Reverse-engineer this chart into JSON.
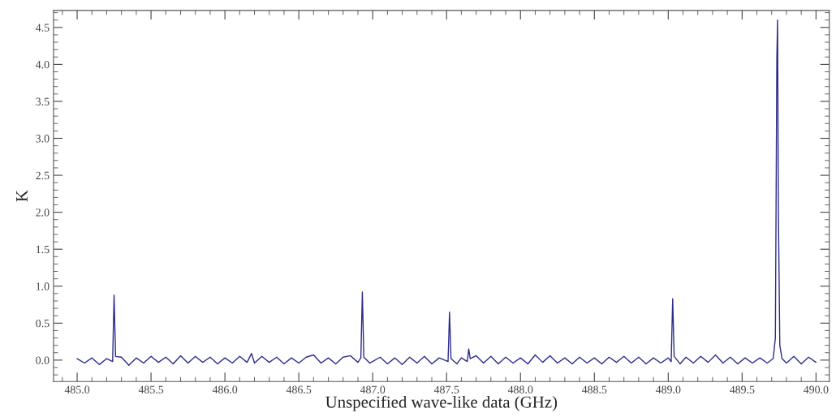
{
  "chart_data": {
    "type": "line",
    "xlabel": "Unspecified wave-like data (GHz)",
    "ylabel": "K",
    "xlim": [
      484.84,
      490.09
    ],
    "ylim": [
      -0.29,
      4.73
    ],
    "xticks": [
      {
        "value": 485.0,
        "label": "485.0"
      },
      {
        "value": 485.5,
        "label": "485.5"
      },
      {
        "value": 486.0,
        "label": "486.0"
      },
      {
        "value": 486.5,
        "label": "486.5"
      },
      {
        "value": 487.0,
        "label": "487.0"
      },
      {
        "value": 487.5,
        "label": "487.5"
      },
      {
        "value": 488.0,
        "label": "488.0"
      },
      {
        "value": 488.5,
        "label": "488.5"
      },
      {
        "value": 489.0,
        "label": "489.0"
      },
      {
        "value": 489.5,
        "label": "489.5"
      },
      {
        "value": 490.0,
        "label": "490.0"
      }
    ],
    "yticks": [
      {
        "value": 0.0,
        "label": "0.0"
      },
      0.5,
      {
        "value": 1.0,
        "label": "1.0"
      },
      1.5,
      {
        "value": 2.0,
        "label": "2.0"
      },
      2.5,
      {
        "value": 3.0,
        "label": "3.0"
      },
      3.5,
      {
        "value": 4.0,
        "label": "4.0"
      },
      4.5
    ],
    "grid": false,
    "legend": false,
    "marker": "none",
    "line_style": "solid",
    "series": [
      {
        "color": "#2b2b8a",
        "x": [
          485.0,
          485.05,
          485.1,
          485.15,
          485.2,
          485.24,
          485.25,
          485.26,
          485.3,
          485.35,
          485.4,
          485.45,
          485.5,
          485.55,
          485.6,
          485.65,
          485.7,
          485.75,
          485.8,
          485.85,
          485.9,
          485.95,
          486.0,
          486.05,
          486.1,
          486.15,
          486.18,
          486.2,
          486.25,
          486.3,
          486.35,
          486.4,
          486.45,
          486.5,
          486.55,
          486.6,
          486.65,
          486.7,
          486.75,
          486.8,
          486.85,
          486.9,
          486.92,
          486.93,
          486.94,
          486.98,
          487.05,
          487.1,
          487.15,
          487.2,
          487.25,
          487.3,
          487.35,
          487.4,
          487.45,
          487.51,
          487.52,
          487.53,
          487.57,
          487.6,
          487.64,
          487.65,
          487.66,
          487.7,
          487.75,
          487.8,
          487.85,
          487.9,
          487.95,
          488.0,
          488.05,
          488.1,
          488.15,
          488.2,
          488.25,
          488.3,
          488.35,
          488.4,
          488.45,
          488.5,
          488.55,
          488.6,
          488.65,
          488.7,
          488.75,
          488.8,
          488.85,
          488.9,
          488.95,
          489.0,
          489.02,
          489.03,
          489.04,
          489.08,
          489.12,
          489.17,
          489.22,
          489.27,
          489.32,
          489.37,
          489.42,
          489.47,
          489.52,
          489.57,
          489.62,
          489.67,
          489.71,
          489.725,
          489.735,
          489.74,
          489.745,
          489.755,
          489.77,
          489.8,
          489.85,
          489.9,
          489.95,
          490.0
        ],
        "values": [
          0.02,
          -0.04,
          0.03,
          -0.06,
          0.02,
          -0.02,
          0.88,
          0.05,
          0.04,
          -0.07,
          0.03,
          -0.04,
          0.05,
          -0.03,
          0.04,
          -0.05,
          0.06,
          -0.04,
          0.05,
          -0.03,
          0.04,
          -0.05,
          0.03,
          -0.04,
          0.05,
          -0.03,
          0.09,
          -0.04,
          0.05,
          -0.03,
          0.04,
          -0.05,
          0.03,
          -0.04,
          0.04,
          0.07,
          -0.04,
          0.03,
          -0.05,
          0.04,
          0.06,
          -0.03,
          0.03,
          0.92,
          0.04,
          -0.04,
          0.04,
          -0.05,
          0.03,
          -0.06,
          0.04,
          -0.04,
          0.05,
          -0.05,
          0.03,
          -0.02,
          0.65,
          0.02,
          -0.05,
          0.03,
          -0.02,
          0.15,
          0.02,
          0.06,
          -0.04,
          0.05,
          -0.05,
          0.04,
          -0.04,
          0.03,
          -0.05,
          0.07,
          -0.03,
          0.06,
          -0.04,
          0.03,
          -0.05,
          0.04,
          -0.04,
          0.03,
          -0.05,
          0.04,
          -0.03,
          0.05,
          -0.04,
          0.04,
          -0.05,
          0.03,
          -0.04,
          0.03,
          -0.02,
          0.83,
          0.05,
          -0.05,
          0.04,
          -0.04,
          0.05,
          -0.03,
          0.07,
          -0.04,
          0.04,
          -0.05,
          0.03,
          -0.04,
          0.03,
          -0.04,
          0.02,
          0.3,
          4.1,
          4.6,
          2.1,
          0.2,
          0.02,
          -0.04,
          0.05,
          -0.05,
          0.04,
          -0.03
        ]
      }
    ]
  }
}
